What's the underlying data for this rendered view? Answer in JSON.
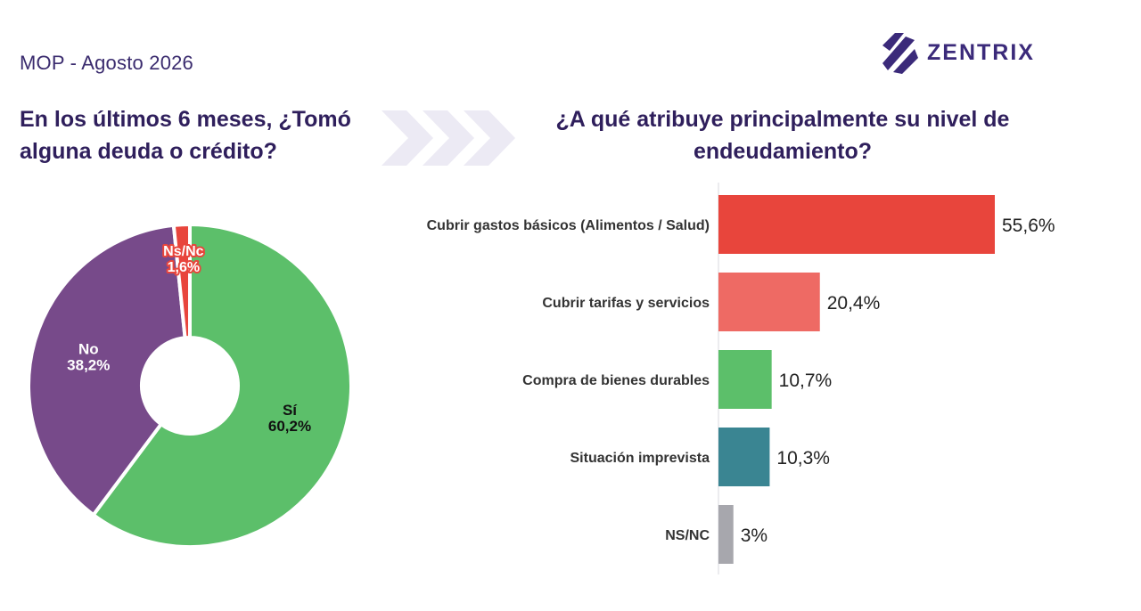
{
  "header": {
    "source": "MOP - Agosto 2026",
    "logo_text": "ZENTRIX"
  },
  "colors": {
    "red": "#e8453c",
    "light_red": "#ee6a64",
    "green": "#5cbf6a",
    "purple": "#774a8a",
    "teal": "#3a8592",
    "gray": "#a7a7ad",
    "title": "#2f1f5c"
  },
  "chart_data": [
    {
      "type": "pie",
      "title": "En los últimos 6 meses, ¿Tomó alguna deuda o crédito?",
      "donut": true,
      "slices": [
        {
          "label": "Sí",
          "value": 60.2,
          "display": "60,2%",
          "color": "#5cbf6a"
        },
        {
          "label": "No",
          "value": 38.2,
          "display": "38,2%",
          "color": "#774a8a"
        },
        {
          "label": "Ns/Nc",
          "value": 1.6,
          "display": "1,6%",
          "color": "#e8453c"
        }
      ]
    },
    {
      "type": "bar",
      "orientation": "horizontal",
      "title": "¿A qué atribuye principalmente su nivel de endeudamiento?",
      "categories": [
        "Cubrir gastos básicos (Alimentos / Salud)",
        "Cubrir tarifas y servicios",
        "Compra de bienes durables",
        "Situación imprevista",
        "NS/NC"
      ],
      "values": [
        55.6,
        20.4,
        10.7,
        10.3,
        3
      ],
      "labels": [
        "55,6%",
        "20,4%",
        "10,7%",
        "10,3%",
        "3%"
      ],
      "colors": [
        "#e8453c",
        "#ee6a64",
        "#5cbf6a",
        "#3a8592",
        "#a7a7ad"
      ],
      "xlim": [
        0,
        60
      ],
      "grid": false
    }
  ]
}
